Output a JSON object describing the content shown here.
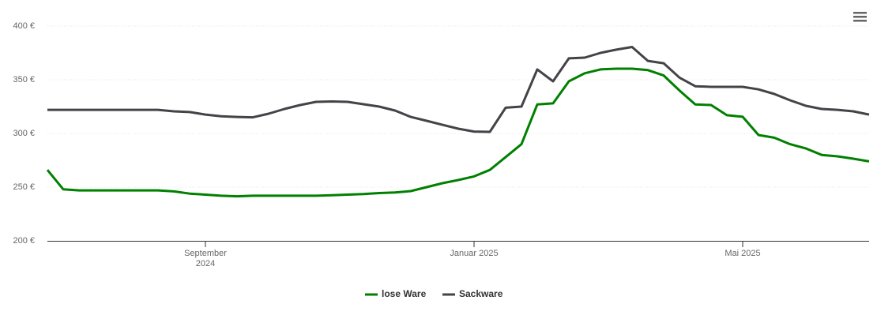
{
  "chart_data": {
    "type": "line",
    "categories": [
      null,
      null,
      null,
      null,
      null,
      null,
      null,
      null,
      null,
      null,
      "September 2024",
      null,
      null,
      null,
      null,
      null,
      null,
      null,
      null,
      null,
      null,
      null,
      null,
      null,
      null,
      null,
      null,
      "Januar 2025",
      null,
      null,
      null,
      null,
      null,
      null,
      null,
      null,
      null,
      null,
      null,
      null,
      null,
      null,
      null,
      null,
      "Mai 2025",
      null,
      null,
      null,
      null,
      null,
      null,
      null,
      null
    ],
    "ylim": [
      200,
      400
    ],
    "yticks": [
      {
        "value": 200,
        "label": "200 €"
      },
      {
        "value": 250,
        "label": "250 €"
      },
      {
        "value": 300,
        "label": "300 €"
      },
      {
        "value": 350,
        "label": "350 €"
      },
      {
        "value": 400,
        "label": "400 €"
      }
    ],
    "grid": true,
    "series": [
      {
        "name": "lose Ware",
        "color": "#008000",
        "values": [
          266,
          248,
          247,
          247,
          247,
          247,
          247,
          247,
          246,
          244,
          243,
          242,
          241.5,
          242,
          242,
          242,
          242,
          242,
          242.5,
          243,
          243.5,
          244.5,
          245,
          246.3,
          250,
          253.7,
          256.6,
          260,
          266,
          278,
          290,
          327,
          328,
          348.5,
          356,
          359.6,
          360.3,
          360.3,
          359,
          354,
          340,
          327,
          326.5,
          317,
          315.5,
          298.5,
          296,
          290,
          286,
          280,
          278.7,
          276.5,
          274
        ]
      },
      {
        "name": "Sackware",
        "color": "#434348",
        "values": [
          322,
          322,
          322,
          322,
          322,
          322,
          322,
          322,
          320.6,
          319.9,
          317.6,
          316,
          315.4,
          315,
          318.4,
          322.8,
          326.5,
          329.4,
          329.8,
          329.4,
          327.2,
          325,
          321.3,
          315.4,
          311.8,
          308,
          304.4,
          301.8,
          301.5,
          324,
          325,
          359.6,
          348.5,
          369.9,
          370.6,
          375,
          378,
          380.5,
          367.6,
          365.4,
          352,
          344,
          343.4,
          343.4,
          343.4,
          341,
          336.8,
          330.9,
          325.7,
          322.8,
          322,
          320.6,
          317.6
        ]
      }
    ]
  }
}
